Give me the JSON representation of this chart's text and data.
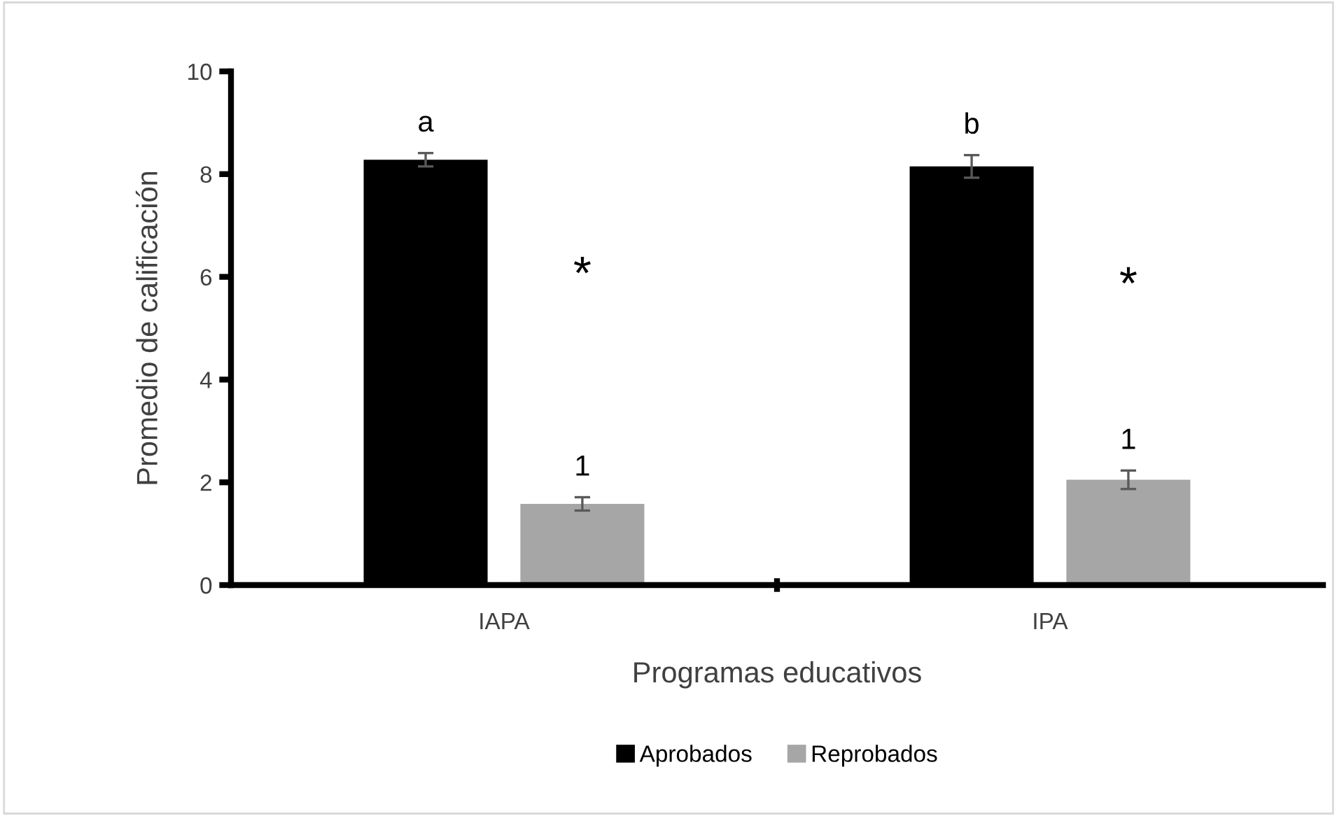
{
  "chart_data": {
    "type": "bar",
    "xlabel": "Programas educativos",
    "ylabel": "Promedio de calificación",
    "categories": [
      "IAPA",
      "IPA"
    ],
    "series": [
      {
        "name": "Aprobados",
        "color": "#000000",
        "values": [
          8.28,
          8.15
        ],
        "errors": [
          0.13,
          0.22
        ]
      },
      {
        "name": "Reprobados",
        "color": "#a6a6a6",
        "values": [
          1.58,
          2.05
        ],
        "errors": [
          0.13,
          0.18
        ]
      }
    ],
    "annotations": [
      "a",
      "b",
      "1",
      "1",
      "*",
      "*"
    ],
    "ylim": [
      0,
      10
    ],
    "yticks": [
      0,
      2,
      4,
      6,
      8,
      10
    ],
    "grid": false,
    "legend": "bottom"
  }
}
